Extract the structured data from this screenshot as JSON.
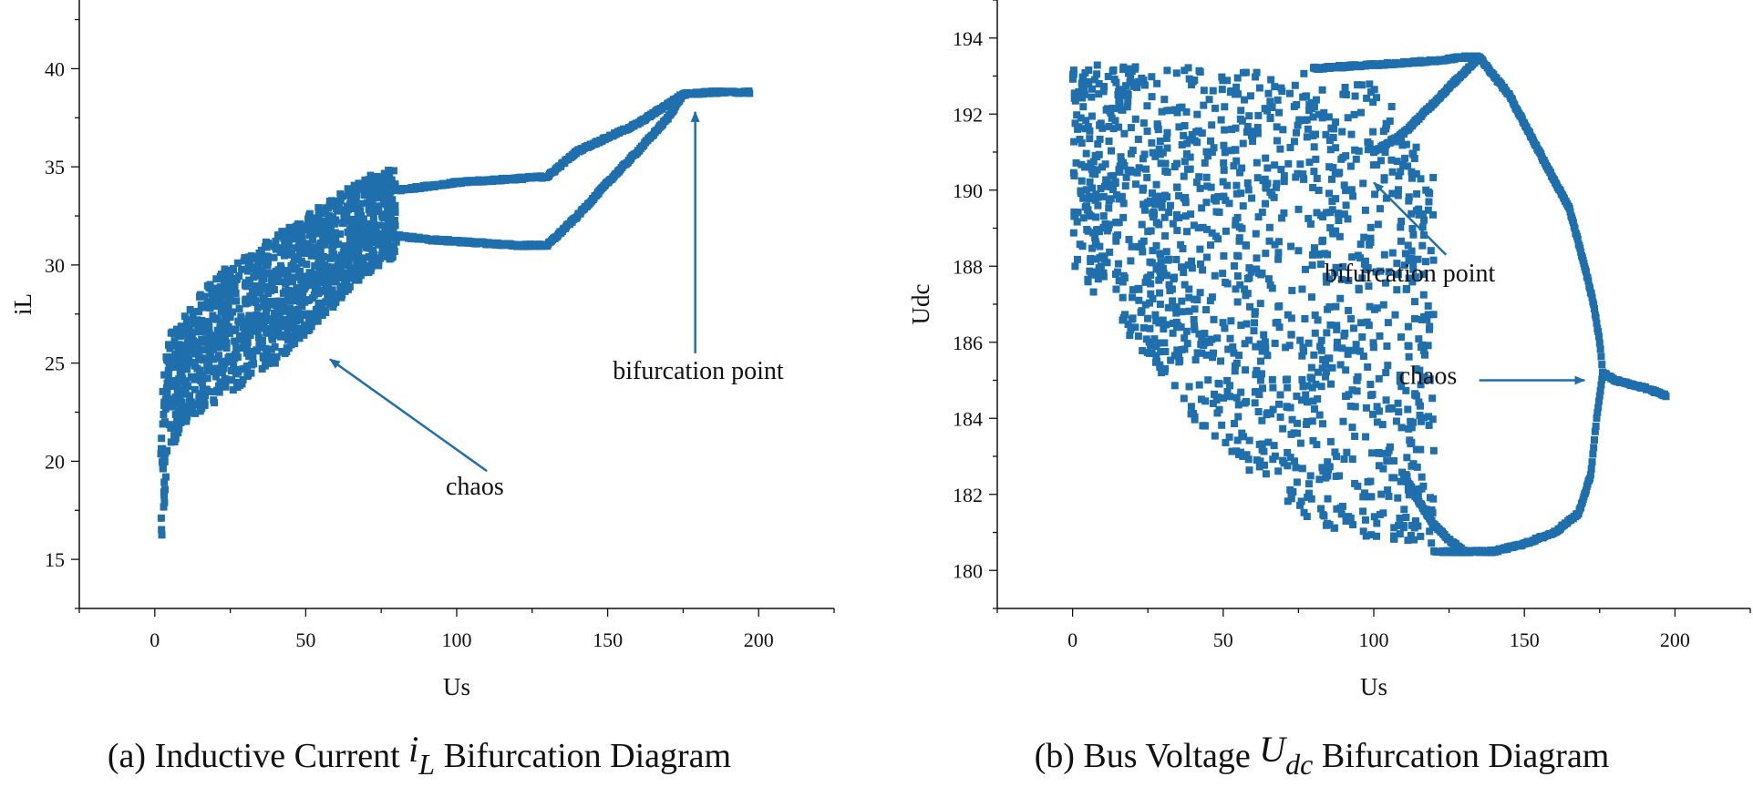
{
  "colors": {
    "series": "#1f6fad",
    "axis": "#111111",
    "text": "#111111"
  },
  "chart_data": [
    {
      "type": "scatter",
      "title": "",
      "caption": {
        "prefix": "(a) Inductive Current ",
        "symbol": "i",
        "sub": "L",
        "suffix": " Bifurcation Diagram"
      },
      "xlabel": "Us",
      "ylabel": "iL",
      "xlim": [
        -25,
        225
      ],
      "ylim": [
        12.5,
        43.5
      ],
      "xticks": [
        0,
        50,
        100,
        150,
        200
      ],
      "yticks": [
        15,
        20,
        25,
        30,
        35,
        40
      ],
      "grid": false,
      "legend": "none",
      "series_bands": [
        {
          "x": [
            2,
            5,
            10,
            15,
            20,
            30,
            40,
            50,
            60,
            70,
            80
          ],
          "y_low": [
            15.5,
            20.5,
            22,
            22.5,
            23,
            24,
            25,
            26.5,
            28,
            29.5,
            30.5
          ],
          "y_high": [
            26,
            26.5,
            27.5,
            28.5,
            29.5,
            30.5,
            31.5,
            32.5,
            33.5,
            34.5,
            35
          ]
        }
      ],
      "series_curves": [
        {
          "x": [
            80,
            90,
            100,
            110,
            120,
            130,
            140,
            150,
            160,
            170,
            175
          ],
          "y": [
            33.8,
            34,
            34.2,
            34.3,
            34.4,
            34.5,
            35.8,
            36.5,
            37.2,
            38.2,
            38.7
          ]
        },
        {
          "x": [
            80,
            90,
            100,
            110,
            120,
            130,
            140,
            150,
            160,
            170,
            175
          ],
          "y": [
            31.5,
            31.3,
            31.2,
            31.1,
            31.0,
            31.0,
            32.5,
            34.2,
            35.8,
            37.5,
            38.7
          ]
        },
        {
          "x": [
            175,
            180,
            185,
            190,
            197
          ],
          "y": [
            38.7,
            38.75,
            38.8,
            38.8,
            38.8
          ]
        }
      ],
      "annotations": [
        {
          "text": "chaos",
          "text_x": 106,
          "text_y": 18.3,
          "arrow_from": [
            110,
            19.5
          ],
          "arrow_to": [
            58,
            25.2
          ]
        },
        {
          "text": "bifurcation point",
          "text_x": 180,
          "text_y": 24.2,
          "arrow_from": [
            179,
            25.5
          ],
          "arrow_to": [
            179,
            37.8
          ]
        }
      ]
    },
    {
      "type": "scatter",
      "title": "",
      "caption": {
        "prefix": "(b) Bus Voltage ",
        "symbol": "U",
        "sub": "dc",
        "suffix": " Bifurcation Diagram"
      },
      "xlabel": "Us",
      "ylabel": "Udc",
      "xlim": [
        -25,
        225
      ],
      "ylim": [
        179,
        195
      ],
      "xticks": [
        0,
        50,
        100,
        150,
        200
      ],
      "yticks": [
        180,
        182,
        184,
        186,
        188,
        190,
        192,
        194
      ],
      "grid": false,
      "legend": "none",
      "series_bands": [
        {
          "x": [
            0,
            20,
            40,
            60,
            80,
            100,
            110,
            120
          ],
          "y_low": [
            188,
            186,
            184,
            182.5,
            181.2,
            180.8,
            180.7,
            180.5
          ],
          "y_high": [
            193.3,
            193.3,
            193.3,
            193.2,
            193.1,
            192.8,
            191.8,
            190.5
          ]
        }
      ],
      "series_curves": [
        {
          "x": [
            80,
            100,
            120,
            130,
            135
          ],
          "y": [
            193.2,
            193.3,
            193.4,
            193.5,
            193.5
          ]
        },
        {
          "x": [
            100,
            110,
            120,
            130,
            135
          ],
          "y": [
            191.0,
            191.5,
            192.3,
            193.1,
            193.5
          ]
        },
        {
          "x": [
            135,
            145,
            155,
            165,
            170,
            173,
            175,
            176
          ],
          "y": [
            193.5,
            192.5,
            191.0,
            189.5,
            188.0,
            187.0,
            186.0,
            185.2
          ]
        },
        {
          "x": [
            176,
            174,
            172,
            168,
            160,
            150,
            140,
            130,
            120
          ],
          "y": [
            185.2,
            184.0,
            182.5,
            181.5,
            181.0,
            180.7,
            180.5,
            180.5,
            180.5
          ]
        },
        {
          "x": [
            110,
            115,
            120,
            125,
            130
          ],
          "y": [
            182.5,
            181.8,
            181.2,
            180.8,
            180.5
          ]
        },
        {
          "x": [
            176,
            180,
            185,
            190,
            197
          ],
          "y": [
            185.2,
            185.0,
            184.9,
            184.8,
            184.6
          ]
        }
      ],
      "annotations": [
        {
          "text": "bifurcation point",
          "text_x": 112,
          "text_y": 187.6,
          "arrow_from": [
            124,
            188.3
          ],
          "arrow_to": [
            100,
            190.2
          ]
        },
        {
          "text": "chaos",
          "text_x": 118,
          "text_y": 184.9,
          "arrow_from": [
            135,
            185.0
          ],
          "arrow_to": [
            170,
            185.0
          ]
        }
      ]
    }
  ]
}
